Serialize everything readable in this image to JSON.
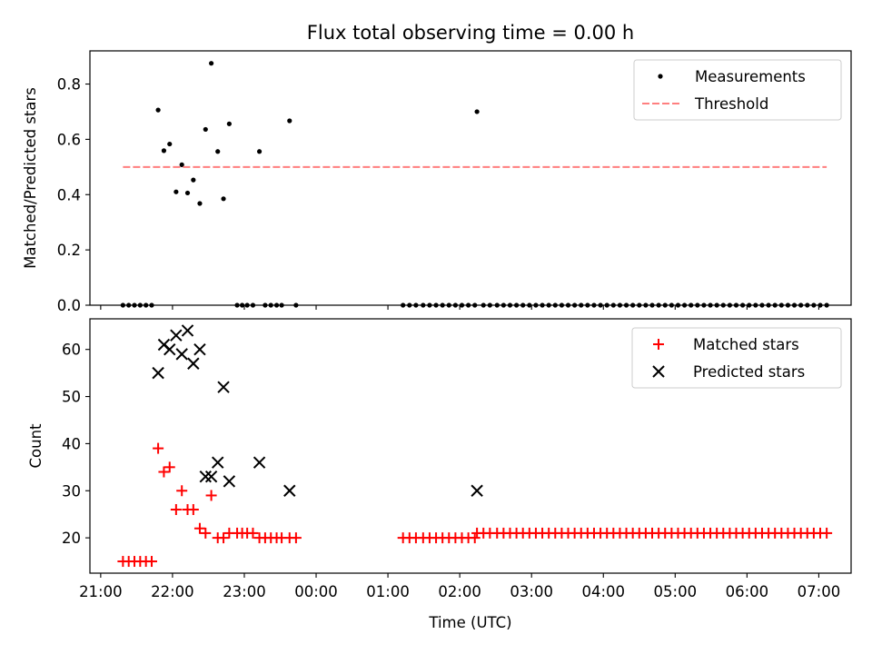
{
  "chart_data": [
    {
      "type": "scatter",
      "title": "Flux total observing time = 0.00 h",
      "xlabel": "",
      "ylabel": "Matched/Predicted stars",
      "ylim": [
        0,
        0.92
      ],
      "yticks": [
        "0.0",
        "0.2",
        "0.4",
        "0.6",
        "0.8"
      ],
      "grid": false,
      "legend": "top-right",
      "series": [
        {
          "name": "Measurements",
          "marker": "dot",
          "color": "#000000",
          "points": [
            [
              21.31,
              0
            ],
            [
              21.39,
              0
            ],
            [
              21.47,
              0
            ],
            [
              21.55,
              0
            ],
            [
              21.63,
              0
            ],
            [
              21.71,
              0
            ],
            [
              21.8,
              0.706
            ],
            [
              21.88,
              0.559
            ],
            [
              21.96,
              0.583
            ],
            [
              22.05,
              0.41
            ],
            [
              22.13,
              0.508
            ],
            [
              22.21,
              0.406
            ],
            [
              22.29,
              0.453
            ],
            [
              22.38,
              0.368
            ],
            [
              22.46,
              0.636
            ],
            [
              22.54,
              0.875
            ],
            [
              22.63,
              0.556
            ],
            [
              22.71,
              0.385
            ],
            [
              22.79,
              0.656
            ],
            [
              22.9,
              0
            ],
            [
              22.97,
              0
            ],
            [
              23.04,
              0
            ],
            [
              23.12,
              0
            ],
            [
              23.21,
              0.556
            ],
            [
              23.29,
              0
            ],
            [
              23.37,
              0
            ],
            [
              23.45,
              0
            ],
            [
              23.52,
              0
            ],
            [
              23.63,
              0.667
            ],
            [
              23.72,
              0
            ],
            [
              25.21,
              0
            ],
            [
              25.3,
              0
            ],
            [
              25.39,
              0
            ],
            [
              25.49,
              0
            ],
            [
              25.58,
              0
            ],
            [
              25.67,
              0
            ],
            [
              25.76,
              0
            ],
            [
              25.85,
              0
            ],
            [
              25.94,
              0
            ],
            [
              26.03,
              0
            ],
            [
              26.12,
              0
            ],
            [
              26.21,
              0
            ],
            [
              26.24,
              0.7
            ],
            [
              26.33,
              0
            ],
            [
              26.42,
              0
            ],
            [
              26.52,
              0
            ],
            [
              26.61,
              0
            ],
            [
              26.7,
              0
            ],
            [
              26.79,
              0
            ],
            [
              26.88,
              0
            ],
            [
              26.97,
              0
            ],
            [
              27.06,
              0
            ],
            [
              27.15,
              0
            ],
            [
              27.24,
              0
            ],
            [
              27.33,
              0
            ],
            [
              27.42,
              0
            ],
            [
              27.51,
              0
            ],
            [
              27.6,
              0
            ],
            [
              27.69,
              0
            ],
            [
              27.78,
              0
            ],
            [
              27.87,
              0
            ],
            [
              27.96,
              0
            ],
            [
              28.05,
              0
            ],
            [
              28.14,
              0
            ],
            [
              28.23,
              0
            ],
            [
              28.32,
              0
            ],
            [
              28.41,
              0
            ],
            [
              28.5,
              0
            ],
            [
              28.59,
              0
            ],
            [
              28.68,
              0
            ],
            [
              28.77,
              0
            ],
            [
              28.86,
              0
            ],
            [
              28.95,
              0
            ],
            [
              29.04,
              0
            ],
            [
              29.13,
              0
            ],
            [
              29.22,
              0
            ],
            [
              29.31,
              0
            ],
            [
              29.4,
              0
            ],
            [
              29.49,
              0
            ],
            [
              29.58,
              0
            ],
            [
              29.67,
              0
            ],
            [
              29.76,
              0
            ],
            [
              29.85,
              0
            ],
            [
              29.94,
              0
            ],
            [
              30.03,
              0
            ],
            [
              30.12,
              0
            ],
            [
              30.21,
              0
            ],
            [
              30.3,
              0
            ],
            [
              30.39,
              0
            ],
            [
              30.48,
              0
            ],
            [
              30.57,
              0
            ],
            [
              30.66,
              0
            ],
            [
              30.75,
              0
            ],
            [
              30.84,
              0
            ],
            [
              30.93,
              0
            ],
            [
              31.02,
              0
            ],
            [
              31.11,
              0
            ]
          ]
        },
        {
          "name": "Threshold",
          "marker": "dashed-line",
          "color": "#ff7f7f",
          "points": [
            [
              21.31,
              0.5
            ],
            [
              31.11,
              0.5
            ]
          ]
        }
      ]
    },
    {
      "type": "scatter",
      "title": "",
      "xlabel": "Time (UTC)",
      "ylabel": "Count",
      "xlim": [
        20.85,
        31.45
      ],
      "ylim": [
        12.5,
        66.5
      ],
      "yticks": [
        "20",
        "30",
        "40",
        "50",
        "60"
      ],
      "xtick_values": [
        21,
        22,
        23,
        24,
        25,
        26,
        27,
        28,
        29,
        30,
        31
      ],
      "xticks": [
        "21:00",
        "22:00",
        "23:00",
        "00:00",
        "01:00",
        "02:00",
        "03:00",
        "04:00",
        "05:00",
        "06:00",
        "07:00"
      ],
      "grid": false,
      "legend": "top-right",
      "series": [
        {
          "name": "Matched stars",
          "marker": "plus",
          "color": "#ff0000",
          "points": [
            [
              21.31,
              15
            ],
            [
              21.39,
              15
            ],
            [
              21.47,
              15
            ],
            [
              21.55,
              15
            ],
            [
              21.63,
              15
            ],
            [
              21.71,
              15
            ],
            [
              21.8,
              39
            ],
            [
              21.88,
              34
            ],
            [
              21.96,
              35
            ],
            [
              22.05,
              26
            ],
            [
              22.13,
              30
            ],
            [
              22.21,
              26
            ],
            [
              22.29,
              26
            ],
            [
              22.38,
              22
            ],
            [
              22.46,
              21
            ],
            [
              22.54,
              29
            ],
            [
              22.63,
              20
            ],
            [
              22.71,
              20
            ],
            [
              22.79,
              21
            ],
            [
              22.9,
              21
            ],
            [
              22.97,
              21
            ],
            [
              23.04,
              21
            ],
            [
              23.12,
              21
            ],
            [
              23.21,
              20
            ],
            [
              23.29,
              20
            ],
            [
              23.37,
              20
            ],
            [
              23.45,
              20
            ],
            [
              23.52,
              20
            ],
            [
              23.63,
              20
            ],
            [
              23.72,
              20
            ],
            [
              25.21,
              20
            ],
            [
              25.3,
              20
            ],
            [
              25.39,
              20
            ],
            [
              25.49,
              20
            ],
            [
              25.58,
              20
            ],
            [
              25.67,
              20
            ],
            [
              25.76,
              20
            ],
            [
              25.85,
              20
            ],
            [
              25.94,
              20
            ],
            [
              26.03,
              20
            ],
            [
              26.12,
              20
            ],
            [
              26.21,
              20
            ],
            [
              26.24,
              21
            ],
            [
              26.33,
              21
            ],
            [
              26.42,
              21
            ],
            [
              26.52,
              21
            ],
            [
              26.61,
              21
            ],
            [
              26.7,
              21
            ],
            [
              26.79,
              21
            ],
            [
              26.88,
              21
            ],
            [
              26.97,
              21
            ],
            [
              27.06,
              21
            ],
            [
              27.15,
              21
            ],
            [
              27.24,
              21
            ],
            [
              27.33,
              21
            ],
            [
              27.42,
              21
            ],
            [
              27.51,
              21
            ],
            [
              27.6,
              21
            ],
            [
              27.69,
              21
            ],
            [
              27.78,
              21
            ],
            [
              27.87,
              21
            ],
            [
              27.96,
              21
            ],
            [
              28.05,
              21
            ],
            [
              28.14,
              21
            ],
            [
              28.23,
              21
            ],
            [
              28.32,
              21
            ],
            [
              28.41,
              21
            ],
            [
              28.5,
              21
            ],
            [
              28.59,
              21
            ],
            [
              28.68,
              21
            ],
            [
              28.77,
              21
            ],
            [
              28.86,
              21
            ],
            [
              28.95,
              21
            ],
            [
              29.04,
              21
            ],
            [
              29.13,
              21
            ],
            [
              29.22,
              21
            ],
            [
              29.31,
              21
            ],
            [
              29.4,
              21
            ],
            [
              29.49,
              21
            ],
            [
              29.58,
              21
            ],
            [
              29.67,
              21
            ],
            [
              29.76,
              21
            ],
            [
              29.85,
              21
            ],
            [
              29.94,
              21
            ],
            [
              30.03,
              21
            ],
            [
              30.12,
              21
            ],
            [
              30.21,
              21
            ],
            [
              30.3,
              21
            ],
            [
              30.39,
              21
            ],
            [
              30.48,
              21
            ],
            [
              30.57,
              21
            ],
            [
              30.66,
              21
            ],
            [
              30.75,
              21
            ],
            [
              30.84,
              21
            ],
            [
              30.93,
              21
            ],
            [
              31.02,
              21
            ],
            [
              31.11,
              21
            ]
          ]
        },
        {
          "name": "Predicted stars",
          "marker": "x",
          "color": "#000000",
          "points": [
            [
              21.8,
              55
            ],
            [
              21.88,
              61
            ],
            [
              21.96,
              60
            ],
            [
              22.05,
              63
            ],
            [
              22.13,
              59
            ],
            [
              22.21,
              64
            ],
            [
              22.29,
              57
            ],
            [
              22.38,
              60
            ],
            [
              22.46,
              33
            ],
            [
              22.54,
              33
            ],
            [
              22.63,
              36
            ],
            [
              22.71,
              52
            ],
            [
              22.79,
              32
            ],
            [
              23.21,
              36
            ],
            [
              23.63,
              30
            ],
            [
              26.24,
              30
            ]
          ]
        }
      ]
    }
  ]
}
